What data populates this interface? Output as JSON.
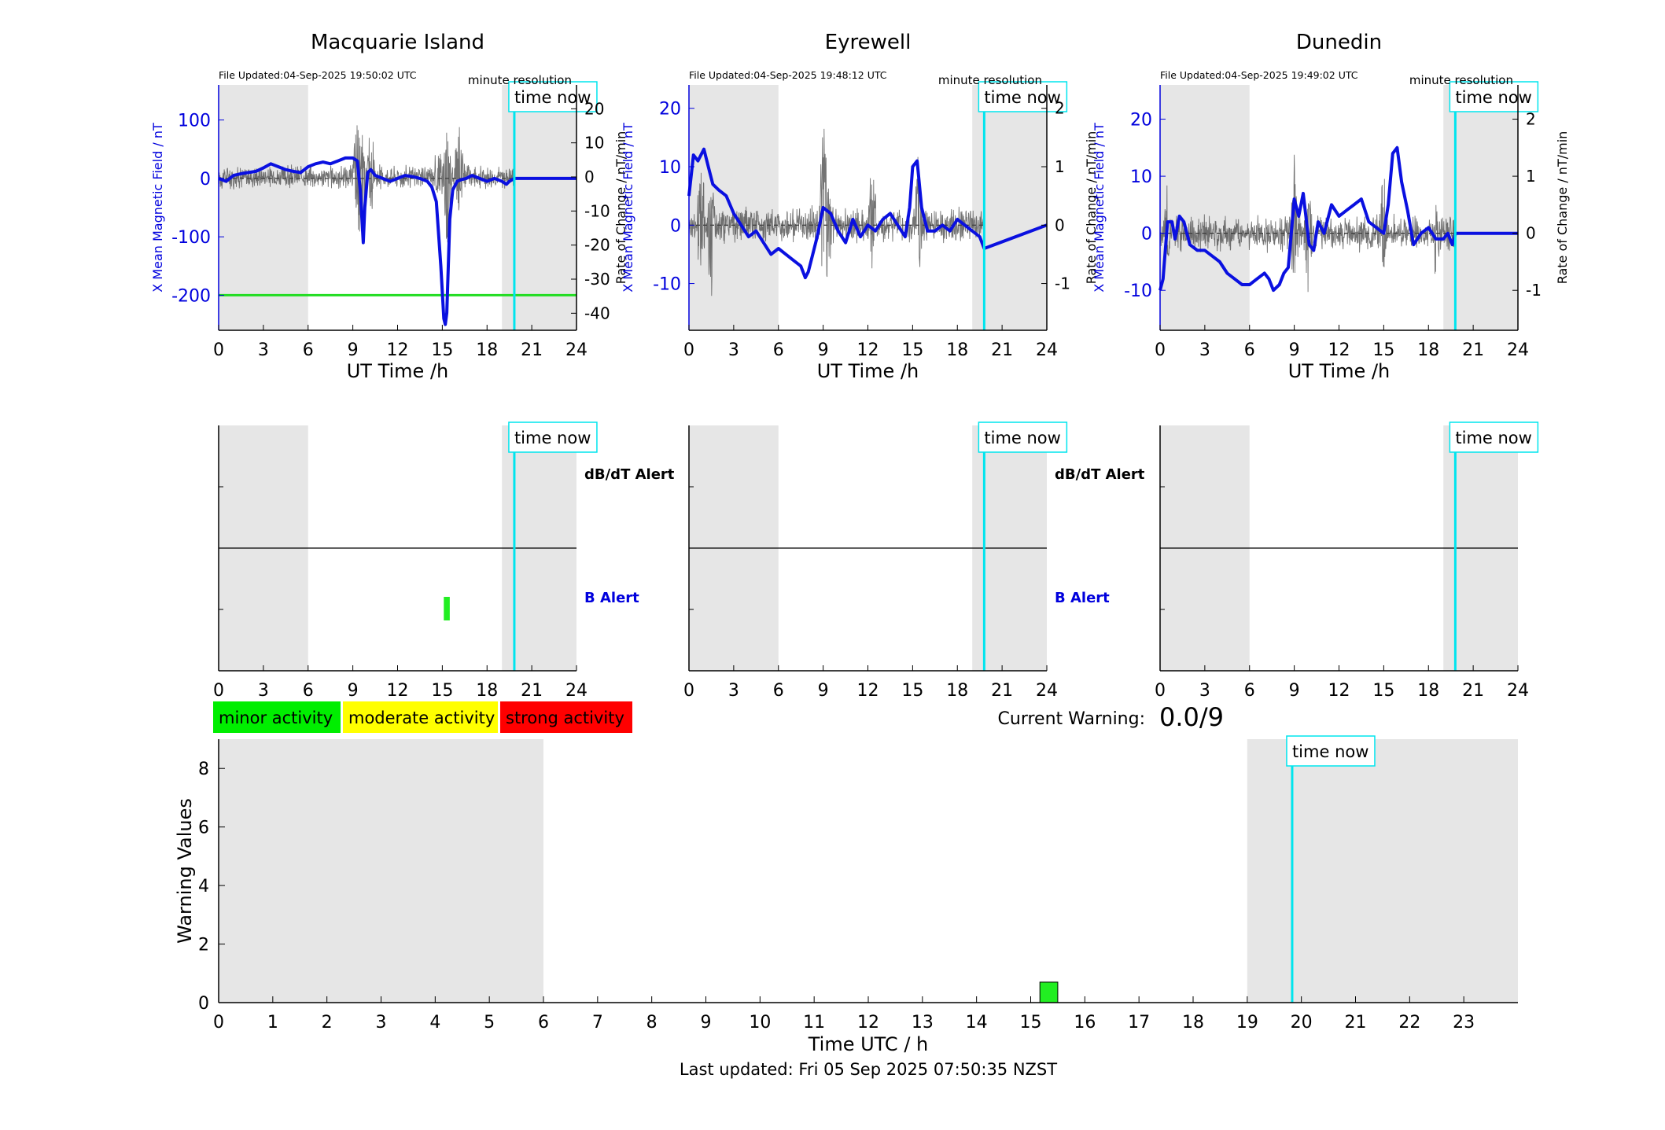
{
  "chart_data": [
    {
      "type": "line",
      "title": "Macquarie Island",
      "file_updated": "File Updated:04-Sep-2025 19:50:02 UTC",
      "resolution": "minute resolution",
      "xlabel": "UT Time /h",
      "ylabel_left": "X Mean Magnetic Field / nT",
      "ylabel_right": "Rate of Change / nT/min",
      "xlim": [
        0,
        24
      ],
      "ylim_left": [
        -260,
        160
      ],
      "ylim_right": [
        -45,
        27
      ],
      "xticks": [
        0,
        3,
        6,
        9,
        12,
        15,
        18,
        21,
        24
      ],
      "yticks_left": [
        -200,
        -100,
        0,
        100
      ],
      "yticks_right": [
        -40,
        -30,
        -20,
        -10,
        0,
        10,
        20
      ],
      "shaded_intervals": [
        [
          0,
          6
        ],
        [
          19.0,
          24
        ]
      ],
      "time_now": 19.83,
      "time_now_label": "time now",
      "threshold_line": {
        "value": -200,
        "color": "#22dd22"
      },
      "series": [
        {
          "axis": "left",
          "color": "#0a10e0",
          "x": [
            0,
            0.5,
            1,
            1.5,
            2,
            2.5,
            3,
            3.5,
            4,
            4.5,
            5,
            5.5,
            6,
            6.5,
            7,
            7.5,
            8,
            8.5,
            9,
            9.3,
            9.5,
            9.7,
            9.8,
            10,
            10.2,
            10.5,
            11,
            11.5,
            12,
            12.5,
            13,
            13.5,
            14,
            14.3,
            14.6,
            14.9,
            15.1,
            15.2,
            15.3,
            15.4,
            15.5,
            15.7,
            16,
            16.3,
            16.6,
            17,
            17.5,
            18,
            18.5,
            19,
            19.3,
            19.5,
            19.83,
            24
          ],
          "y": [
            0,
            -5,
            5,
            8,
            10,
            12,
            18,
            25,
            20,
            15,
            12,
            10,
            20,
            25,
            28,
            25,
            30,
            35,
            35,
            30,
            -20,
            -110,
            -50,
            10,
            15,
            5,
            0,
            -5,
            0,
            5,
            3,
            0,
            -5,
            -15,
            -40,
            -150,
            -240,
            -250,
            -230,
            -150,
            -70,
            -20,
            -5,
            -2,
            0,
            5,
            0,
            -5,
            0,
            -5,
            -10,
            -5,
            0,
            0
          ]
        },
        {
          "axis": "right",
          "color": "#444444",
          "noisy": true,
          "amplitude": 4,
          "spikes": [
            [
              9.3,
              14
            ],
            [
              9.6,
              -18
            ],
            [
              10.2,
              12
            ],
            [
              14.7,
              9
            ],
            [
              15.3,
              -20
            ],
            [
              16.1,
              14
            ]
          ],
          "x_range": [
            0,
            19.8
          ]
        }
      ],
      "alert_labels": {
        "dbdt": "dB/dT Alert",
        "b": "B Alert"
      },
      "alert_bars": [
        {
          "x_start": 15.1,
          "x_end": 15.5,
          "level": "b",
          "color": "#22ee22"
        }
      ]
    },
    {
      "type": "line",
      "title": "Eyrewell",
      "file_updated": "File Updated:04-Sep-2025 19:48:12 UTC",
      "resolution": "minute resolution",
      "xlabel": "UT Time /h",
      "ylabel_left": "X Mean Magnetic Field / nT",
      "ylabel_right": "Rate of Change / nT/min",
      "xlim": [
        0,
        24
      ],
      "ylim_left": [
        -18,
        24
      ],
      "ylim_right": [
        -1.8,
        2.4
      ],
      "xticks": [
        0,
        3,
        6,
        9,
        12,
        15,
        18,
        21,
        24
      ],
      "yticks_left": [
        -10,
        0,
        10,
        20
      ],
      "yticks_right": [
        -1,
        0,
        1,
        2
      ],
      "shaded_intervals": [
        [
          0,
          6
        ],
        [
          19.0,
          24
        ]
      ],
      "time_now": 19.8,
      "time_now_label": "time now",
      "series": [
        {
          "axis": "left",
          "color": "#0a10e0",
          "x": [
            0,
            0.3,
            0.6,
            1,
            1.3,
            1.6,
            2,
            2.5,
            3,
            3.5,
            4,
            4.5,
            5,
            5.5,
            6,
            6.5,
            7,
            7.5,
            7.8,
            8,
            8.3,
            8.6,
            9,
            9.5,
            10,
            10.5,
            11,
            11.5,
            12,
            12.5,
            13,
            13.5,
            14,
            14.5,
            14.8,
            15,
            15.3,
            15.6,
            16,
            16.5,
            17,
            17.5,
            18,
            18.5,
            19,
            19.5,
            19.8,
            24
          ],
          "y": [
            5,
            12,
            11,
            13,
            10,
            7,
            6,
            5,
            2,
            0,
            -2,
            -1,
            -3,
            -5,
            -4,
            -5,
            -6,
            -7,
            -9,
            -8,
            -5,
            -2,
            3,
            2,
            -1,
            -3,
            1,
            -2,
            0,
            -1,
            1,
            2,
            0,
            -2,
            3,
            10,
            11,
            3,
            -1,
            -1,
            0,
            -1,
            1,
            0,
            -1,
            -2,
            -4,
            0
          ]
        },
        {
          "axis": "right",
          "color": "#444444",
          "noisy": true,
          "amplitude": 0.35,
          "spikes": [
            [
              0.8,
              1.2
            ],
            [
              1.5,
              -1.1
            ],
            [
              9.0,
              1.7
            ],
            [
              9.4,
              -0.9
            ],
            [
              15.4,
              1.1
            ],
            [
              12.3,
              0.9
            ]
          ],
          "x_range": [
            0,
            19.8
          ]
        }
      ],
      "alert_labels": {
        "dbdt": "dB/dT Alert",
        "b": "B Alert"
      },
      "alert_bars": []
    },
    {
      "type": "line",
      "title": "Dunedin",
      "file_updated": "File Updated:04-Sep-2025 19:49:02 UTC",
      "resolution": "minute resolution",
      "xlabel": "UT Time /h",
      "ylabel_left": "X Mean Magnetic Field / nT",
      "ylabel_right": "Rate of Change / nT/min",
      "xlim": [
        0,
        24
      ],
      "ylim_left": [
        -17,
        26
      ],
      "ylim_right": [
        -1.7,
        2.6
      ],
      "xticks": [
        0,
        3,
        6,
        9,
        12,
        15,
        18,
        21,
        24
      ],
      "yticks_left": [
        -10,
        0,
        10,
        20
      ],
      "yticks_right": [
        -1,
        0,
        1,
        2
      ],
      "shaded_intervals": [
        [
          0,
          6
        ],
        [
          19.0,
          24
        ]
      ],
      "time_now": 19.8,
      "time_now_label": "time now",
      "series": [
        {
          "axis": "left",
          "color": "#0a10e0",
          "x": [
            0,
            0.2,
            0.5,
            0.8,
            1,
            1.3,
            1.6,
            2,
            2.5,
            3,
            3.5,
            4,
            4.5,
            5,
            5.5,
            6,
            6.5,
            7,
            7.3,
            7.6,
            8,
            8.3,
            8.6,
            9,
            9.3,
            9.6,
            10,
            10.3,
            10.6,
            11,
            11.5,
            12,
            12.5,
            13,
            13.5,
            14,
            14.5,
            15,
            15.3,
            15.6,
            15.9,
            16.2,
            16.6,
            17,
            17.5,
            18,
            18.5,
            19,
            19.3,
            19.6,
            19.83,
            24
          ],
          "y": [
            -10,
            -8,
            2,
            2,
            -1,
            3,
            2,
            -2,
            -3,
            -3,
            -4,
            -5,
            -7,
            -8,
            -9,
            -9,
            -8,
            -7,
            -8,
            -10,
            -9,
            -7,
            -6,
            6,
            3,
            7,
            -2,
            -3,
            2,
            0,
            5,
            3,
            4,
            5,
            6,
            2,
            1,
            0,
            5,
            14,
            15,
            9,
            4,
            -2,
            0,
            1,
            -1,
            -1,
            0,
            -2,
            0,
            0
          ]
        },
        {
          "axis": "right",
          "color": "#444444",
          "noisy": true,
          "amplitude": 0.35,
          "spikes": [
            [
              0.5,
              0.8
            ],
            [
              9.0,
              1.2
            ],
            [
              10.0,
              -1.1
            ],
            [
              15.0,
              0.9
            ],
            [
              18.5,
              -0.5
            ]
          ],
          "x_range": [
            0,
            19.8
          ]
        }
      ],
      "alert_labels": {
        "dbdt": "dB/dT Alert",
        "b": "B Alert"
      },
      "alert_bars": []
    },
    {
      "type": "bar",
      "xlabel": "Time UTC / h",
      "ylabel": "Warning Values",
      "xlim": [
        0,
        24
      ],
      "ylim": [
        0,
        9
      ],
      "xticks": [
        0,
        1,
        2,
        3,
        4,
        5,
        6,
        7,
        8,
        9,
        10,
        11,
        12,
        13,
        14,
        15,
        16,
        17,
        18,
        19,
        20,
        21,
        22,
        23
      ],
      "yticks": [
        0,
        2,
        4,
        6,
        8
      ],
      "shaded_intervals": [
        [
          0,
          6
        ],
        [
          19.0,
          24
        ]
      ],
      "time_now": 19.83,
      "time_now_label": "time now",
      "bars": [
        {
          "x_start": 15.17,
          "x_end": 15.5,
          "value": 0.7,
          "color": "#22ee22"
        }
      ]
    }
  ],
  "legend": [
    {
      "label": "minor activity",
      "color": "#00ee00"
    },
    {
      "label": "moderate activity",
      "color": "#ffff00"
    },
    {
      "label": "strong activity",
      "color": "#ff0000"
    }
  ],
  "current_warning": {
    "label": "Current Warning:",
    "value": "0.0/9"
  },
  "footer": "Last updated: Fri 05 Sep 2025 07:50:35 NZST"
}
